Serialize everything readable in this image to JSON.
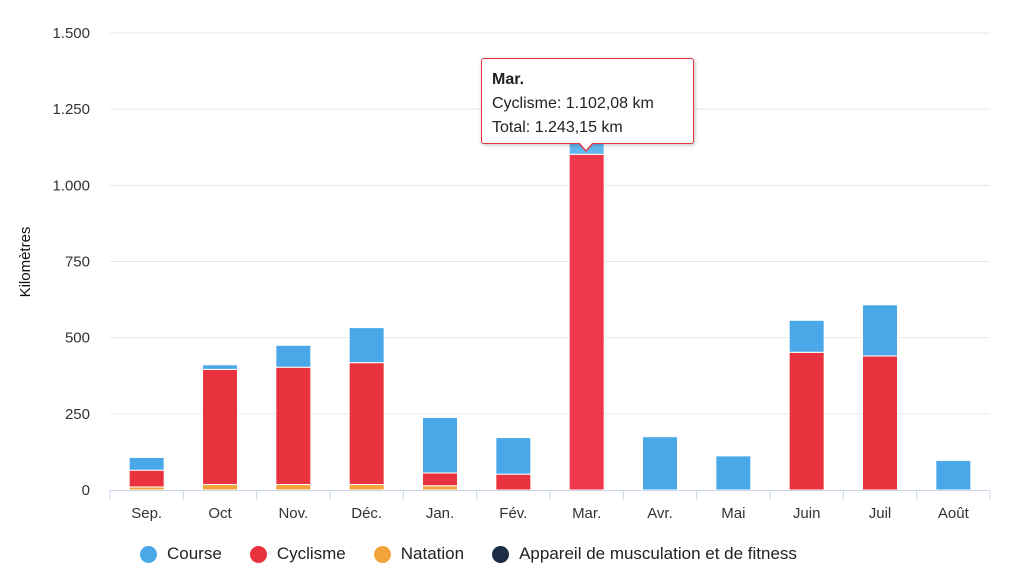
{
  "chart_data": {
    "type": "bar",
    "stacked": true,
    "ylabel": "Kilomètres",
    "ylim": [
      0,
      1500
    ],
    "yticks": [
      {
        "value": 0,
        "label": "0"
      },
      {
        "value": 250,
        "label": "250"
      },
      {
        "value": 500,
        "label": "500"
      },
      {
        "value": 750,
        "label": "750"
      },
      {
        "value": 1000,
        "label": "1.000"
      },
      {
        "value": 1250,
        "label": "1.250"
      },
      {
        "value": 1500,
        "label": "1.500"
      }
    ],
    "grid": true,
    "categories": [
      "Sep.",
      "Oct",
      "Nov.",
      "Déc.",
      "Jan.",
      "Fév.",
      "Mar.",
      "Avr.",
      "Mai",
      "Juin",
      "Juil",
      "Août"
    ],
    "series": [
      {
        "name": "Course",
        "color": "#4aa8e8",
        "values": [
          42,
          15,
          72,
          115,
          182,
          120,
          141,
          175,
          112,
          105,
          168,
          97
        ]
      },
      {
        "name": "Cyclisme",
        "color": "#e8323e",
        "values": [
          55,
          378,
          385,
          400,
          42,
          52,
          1102,
          0,
          0,
          452,
          440,
          0
        ]
      },
      {
        "name": "Natation",
        "color": "#f2a43a",
        "values": [
          10,
          18,
          18,
          18,
          14,
          0,
          0,
          0,
          0,
          0,
          0,
          0
        ]
      },
      {
        "name": "Appareil de musculation et de fitness",
        "color": "#1c2b46",
        "values": [
          0,
          0,
          0,
          0,
          0,
          0,
          0,
          0,
          0,
          0,
          0,
          0
        ]
      }
    ],
    "legend_position": "bottom",
    "highlight_index": 6
  },
  "tooltip": {
    "title": "Mar.",
    "line1": "Cyclisme: 1.102,08 km",
    "line2": "Total: 1.243,15 km"
  },
  "colors": {
    "highlight_cyclisme": "#f0384c",
    "highlight_course": "#62b6ee"
  }
}
